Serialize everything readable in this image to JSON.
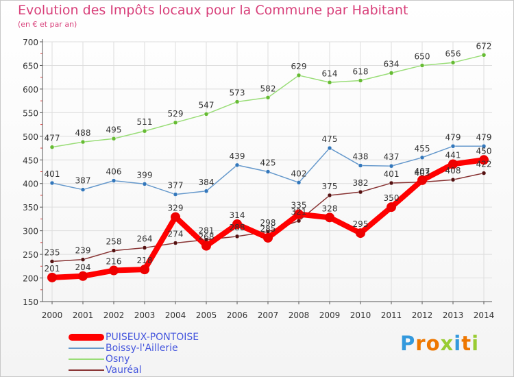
{
  "chart_data": {
    "type": "line",
    "title": "Evolution des Impôts locaux pour la Commune par Habitant",
    "subtitle": "(en € et par an)",
    "xlabel": "",
    "ylabel": "",
    "ylim": [
      150,
      700
    ],
    "yticks": [
      150,
      200,
      250,
      300,
      350,
      400,
      450,
      500,
      550,
      600,
      650,
      700
    ],
    "grid": true,
    "legend_position": "bottom-left",
    "categories": [
      "2000",
      "2001",
      "2002",
      "2003",
      "2004",
      "2005",
      "2006",
      "2007",
      "2008",
      "2009",
      "2010",
      "2011",
      "2012",
      "2013",
      "2014"
    ],
    "series": [
      {
        "name": "Osny",
        "color": "#99dd77",
        "marker": "#66bb33",
        "values": [
          477,
          488,
          495,
          511,
          529,
          547,
          573,
          582,
          629,
          614,
          618,
          634,
          650,
          656,
          672
        ]
      },
      {
        "name": "Boissy-l'Aillerie",
        "color": "#6699cc",
        "marker": "#3377bb",
        "values": [
          401,
          387,
          406,
          399,
          377,
          384,
          439,
          425,
          402,
          475,
          438,
          437,
          455,
          479,
          479
        ]
      },
      {
        "name": "Vauréal",
        "color": "#883333",
        "marker": "#551111",
        "values": [
          235,
          239,
          258,
          264,
          274,
          281,
          288,
          298,
          321,
          375,
          382,
          401,
          403,
          408,
          422
        ]
      },
      {
        "name": "PUISEUX-PONTOISE",
        "color": "#ff0000",
        "marker": "#ee0000",
        "values": [
          201,
          204,
          216,
          218,
          329,
          268,
          314,
          285,
          335,
          328,
          295,
          350,
          407,
          441,
          450
        ]
      }
    ],
    "legend_order": [
      "PUISEUX-PONTOISE",
      "Boissy-l'Aillerie",
      "Osny",
      "Vauréal"
    ]
  },
  "brand": {
    "text": "Proxiti",
    "letter_colors": [
      "#3399dd",
      "#ee7700",
      "#ee7700",
      "#99cc33",
      "#3399dd",
      "#ee7700",
      "#99cc33"
    ]
  },
  "colors": {
    "title": "#d8407a",
    "legend_text": "#4455dd",
    "axis": "#555555",
    "grid": "#dddddd",
    "label": "#333333"
  }
}
